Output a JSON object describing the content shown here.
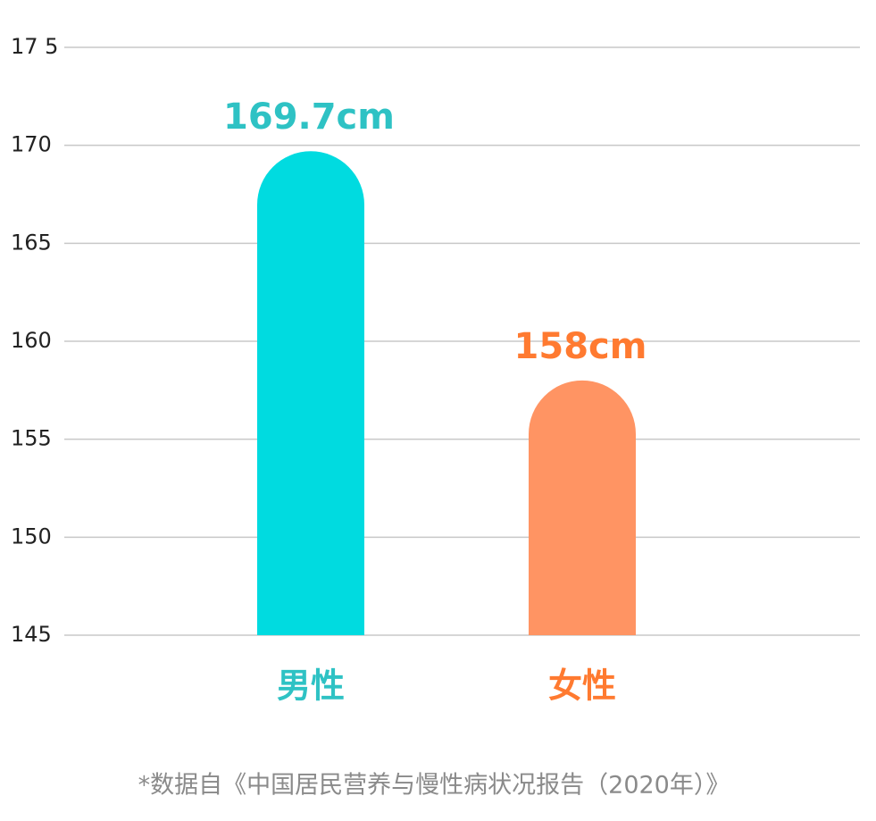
{
  "chart_data": {
    "type": "bar",
    "categories": [
      "男性",
      "女性"
    ],
    "values": [
      169.7,
      158
    ],
    "value_labels": [
      "169.7cm",
      "158cm"
    ],
    "colors": [
      "#00dbe0",
      "#ff9463"
    ],
    "label_colors": [
      "#2ec2c4",
      "#ff7a30"
    ],
    "ylim": [
      145,
      175
    ],
    "yticks": [
      145,
      150,
      155,
      160,
      165,
      170,
      {
        "value": 175,
        "label": "17 5"
      }
    ],
    "grid": true,
    "note": "*数据自《中国居民营养与慢性病状况报告（2020年）》"
  }
}
